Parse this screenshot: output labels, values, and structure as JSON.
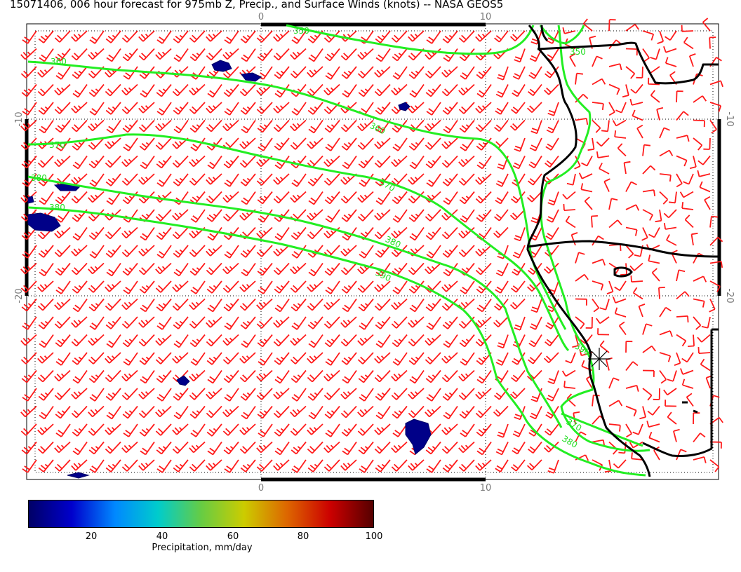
{
  "title": "15071406, 006 hour forecast for 975mb Z, Precip., and Surface Winds (knots) -- NASA GEOS5",
  "colors": {
    "wind_barb": "#ff1a1a",
    "contour": "#22ee22",
    "coastline": "#000000",
    "precip": "#000088",
    "grid_dotted": "#000000"
  },
  "axes": {
    "top_ticks": [
      "0",
      "10"
    ],
    "bottom_ticks": [
      "0",
      "10"
    ],
    "left_ticks": [
      "-10",
      "-20"
    ],
    "right_ticks": [
      "-10",
      "-20"
    ]
  },
  "contours": [
    {
      "label": "350"
    },
    {
      "label": "360"
    },
    {
      "label": "360"
    },
    {
      "label": "370"
    },
    {
      "label": "370"
    },
    {
      "label": "370"
    },
    {
      "label": "380"
    },
    {
      "label": "380"
    },
    {
      "label": "380"
    },
    {
      "label": "380"
    },
    {
      "label": "390"
    },
    {
      "label": "390"
    },
    {
      "label": "350"
    }
  ],
  "colorbar": {
    "ticks": [
      "20",
      "40",
      "60",
      "80",
      "100"
    ],
    "label": "Precipitation, mm/day",
    "min": 0,
    "max": 100,
    "gradient": [
      "#000066",
      "#0000cc",
      "#0088ff",
      "#00cccc",
      "#66cc44",
      "#cccc00",
      "#dd6600",
      "#cc0000",
      "#550000"
    ]
  },
  "marker": {
    "icon": "asterisk-station-icon"
  }
}
